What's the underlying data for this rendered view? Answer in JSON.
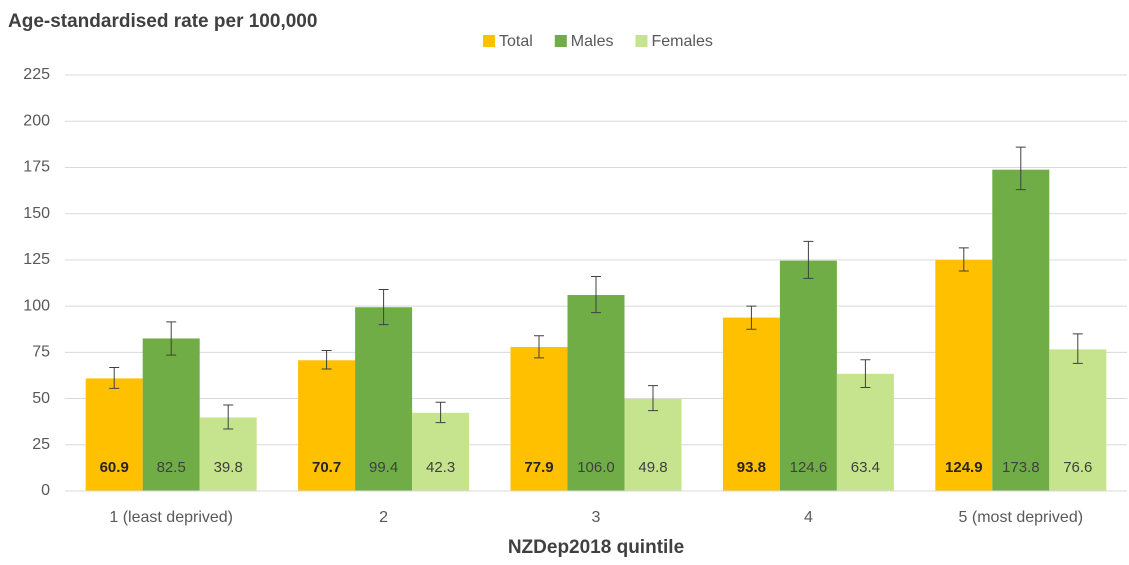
{
  "chart_data": {
    "type": "bar",
    "title": "Age-standardised rate per 100,000",
    "x_label": "NZDep2018 quintile",
    "categories": [
      "1 (least deprived)",
      "2",
      "3",
      "4",
      "5 (most deprived)"
    ],
    "series": [
      {
        "name": "Total",
        "color": "#ffc000",
        "values": [
          60.9,
          70.7,
          77.9,
          93.8,
          124.9
        ],
        "value_labels": [
          "60.9",
          "70.7",
          "77.9",
          "93.8",
          "124.9"
        ],
        "ci_low": [
          55.5,
          66,
          72,
          87.5,
          119
        ],
        "ci_high": [
          66.8,
          76,
          84,
          100,
          131.5
        ]
      },
      {
        "name": "Males",
        "color": "#70ad47",
        "values": [
          82.5,
          99.4,
          106,
          124.6,
          173.8
        ],
        "value_labels": [
          "82.5",
          "99.4",
          "106.0",
          "124.6",
          "173.8"
        ],
        "ci_low": [
          73.5,
          90,
          96.5,
          115,
          163
        ],
        "ci_high": [
          91.5,
          109,
          116,
          135,
          186
        ]
      },
      {
        "name": "Females",
        "color": "#c6e48e",
        "values": [
          39.8,
          42.3,
          49.8,
          63.4,
          76.6
        ],
        "value_labels": [
          "39.8",
          "42.3",
          "49.8",
          "63.4",
          "76.6"
        ],
        "ci_low": [
          33.5,
          37,
          43.5,
          56,
          69
        ],
        "ci_high": [
          46.5,
          48,
          57,
          71,
          85
        ]
      }
    ],
    "ylim": [
      0,
      225
    ],
    "yticks": [
      0,
      25,
      50,
      75,
      100,
      125,
      150,
      175,
      200,
      225
    ],
    "grid": true,
    "legend": "top"
  }
}
